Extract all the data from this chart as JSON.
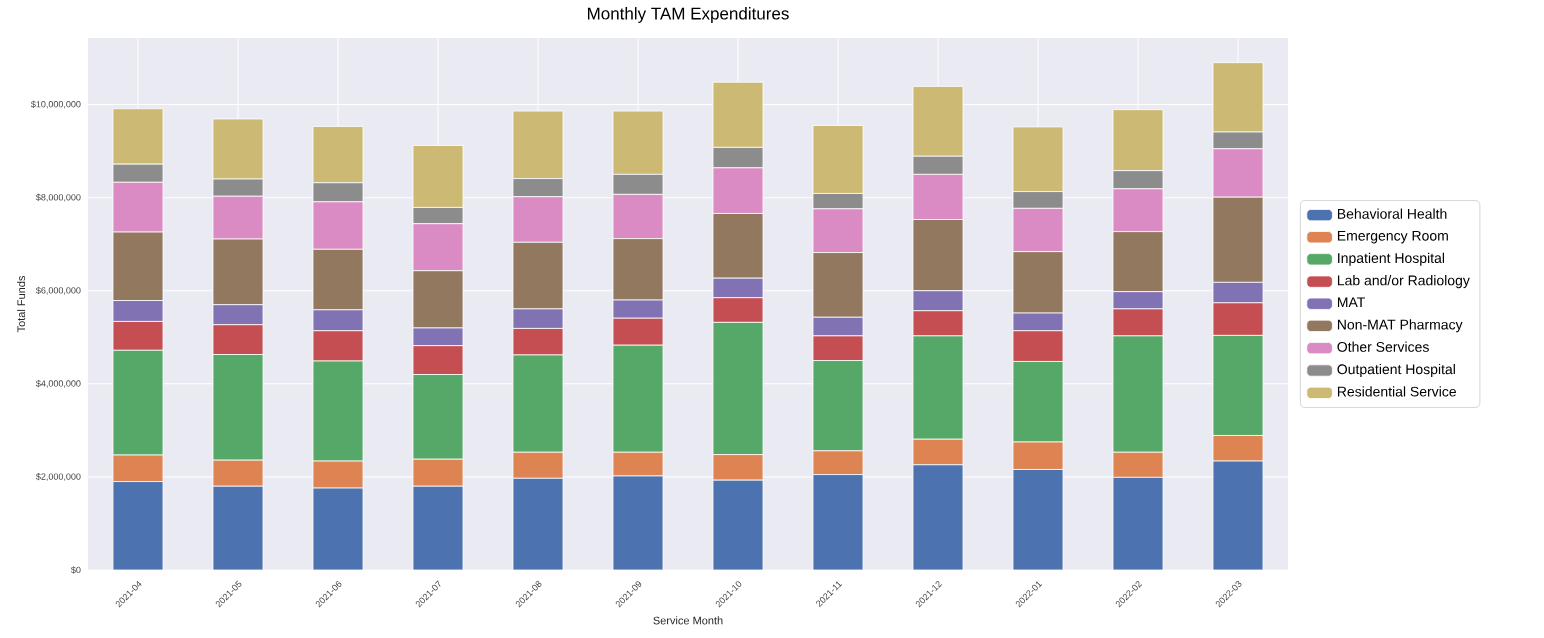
{
  "chart_data": {
    "type": "bar",
    "stacked": true,
    "title": "Monthly TAM Expenditures",
    "xlabel": "Service Month",
    "ylabel": "Total Funds",
    "categories": [
      "2021-04",
      "2021-05",
      "2021-06",
      "2021-07",
      "2021-08",
      "2021-09",
      "2021-10",
      "2021-11",
      "2021-12",
      "2022-01",
      "2022-02",
      "2022-03"
    ],
    "series": [
      {
        "name": "Behavioral Health",
        "color": "#4c72b0",
        "values": [
          1900000,
          1800000,
          1760000,
          1800000,
          1970000,
          2020000,
          1930000,
          2050000,
          2260000,
          2160000,
          1990000,
          2340000
        ]
      },
      {
        "name": "Emergency Room",
        "color": "#dd8452",
        "values": [
          570000,
          560000,
          580000,
          580000,
          560000,
          510000,
          550000,
          510000,
          550000,
          590000,
          540000,
          550000
        ]
      },
      {
        "name": "Inpatient Hospital",
        "color": "#55a868",
        "values": [
          2250000,
          2270000,
          2150000,
          1820000,
          2090000,
          2300000,
          2840000,
          1940000,
          2220000,
          1730000,
          2500000,
          2150000
        ]
      },
      {
        "name": "Lab and/or Radiology",
        "color": "#c44e52",
        "values": [
          620000,
          640000,
          650000,
          620000,
          570000,
          580000,
          530000,
          530000,
          540000,
          660000,
          580000,
          700000
        ]
      },
      {
        "name": "MAT",
        "color": "#8172b3",
        "values": [
          450000,
          430000,
          450000,
          380000,
          420000,
          390000,
          420000,
          400000,
          430000,
          380000,
          370000,
          440000
        ]
      },
      {
        "name": "Non-MAT Pharmacy",
        "color": "#937860",
        "values": [
          1470000,
          1410000,
          1300000,
          1230000,
          1430000,
          1320000,
          1390000,
          1390000,
          1530000,
          1320000,
          1290000,
          1830000
        ]
      },
      {
        "name": "Other Services",
        "color": "#da8bc3",
        "values": [
          1070000,
          920000,
          1020000,
          1010000,
          980000,
          950000,
          980000,
          940000,
          970000,
          930000,
          920000,
          1040000
        ]
      },
      {
        "name": "Outpatient Hospital",
        "color": "#8c8c8c",
        "values": [
          390000,
          370000,
          410000,
          350000,
          390000,
          430000,
          440000,
          330000,
          390000,
          360000,
          390000,
          360000
        ]
      },
      {
        "name": "Residential Service",
        "color": "#ccb974",
        "values": [
          1190000,
          1290000,
          1210000,
          1330000,
          1450000,
          1360000,
          1400000,
          1460000,
          1500000,
          1390000,
          1310000,
          1490000
        ]
      }
    ],
    "ylim": [
      0,
      11430000
    ],
    "yticks": [
      {
        "value": 0,
        "label": "$0"
      },
      {
        "value": 2000000,
        "label": "$2,000,000"
      },
      {
        "value": 4000000,
        "label": "$4,000,000"
      },
      {
        "value": 6000000,
        "label": "$6,000,000"
      },
      {
        "value": 8000000,
        "label": "$8,000,000"
      },
      {
        "value": 10000000,
        "label": "$10,000,000"
      }
    ],
    "grid": true,
    "legend": "right"
  }
}
